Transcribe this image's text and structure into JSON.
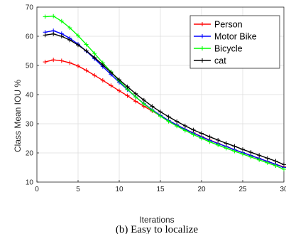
{
  "chart_data": {
    "type": "line",
    "title": "",
    "xlabel": "Iterations",
    "ylabel": "Class Mean IOU %",
    "xlim": [
      0,
      30
    ],
    "ylim": [
      10,
      70
    ],
    "xticks": [
      0,
      5,
      10,
      15,
      20,
      25,
      30
    ],
    "yticks": [
      10,
      20,
      30,
      40,
      50,
      60,
      70
    ],
    "grid": true,
    "legend_position": "top-right",
    "x": [
      1,
      2,
      3,
      4,
      5,
      6,
      7,
      8,
      9,
      10,
      11,
      12,
      13,
      14,
      15,
      16,
      17,
      18,
      19,
      20,
      21,
      22,
      23,
      24,
      25,
      26,
      27,
      28,
      29,
      30
    ],
    "series": [
      {
        "name": "Person",
        "color": "#ff0000",
        "values": [
          51.2,
          51.9,
          51.6,
          50.9,
          49.8,
          48.3,
          46.6,
          44.9,
          43.1,
          41.3,
          39.6,
          37.7,
          36.0,
          34.4,
          32.7,
          31.1,
          29.6,
          28.1,
          26.9,
          25.6,
          24.4,
          23.3,
          22.2,
          21.1,
          20.1,
          19.1,
          18.1,
          17.1,
          16.1,
          15.2
        ]
      },
      {
        "name": "Motor Bike",
        "color": "#0000ff",
        "values": [
          61.4,
          61.9,
          60.9,
          59.3,
          57.3,
          54.9,
          52.3,
          49.6,
          46.9,
          44.2,
          41.7,
          39.2,
          36.9,
          34.8,
          32.9,
          31.1,
          29.6,
          28.1,
          26.8,
          25.5,
          24.3,
          23.2,
          22.2,
          21.1,
          20.1,
          19.1,
          18.1,
          17.1,
          16.1,
          15.0
        ]
      },
      {
        "name": "Bicycle",
        "color": "#00ff00",
        "values": [
          66.7,
          66.9,
          65.2,
          62.9,
          60.2,
          57.2,
          54.1,
          50.9,
          47.8,
          44.7,
          41.9,
          39.2,
          36.8,
          34.6,
          32.6,
          30.8,
          29.2,
          27.7,
          26.3,
          25.0,
          23.8,
          22.7,
          21.6,
          20.6,
          19.6,
          18.6,
          17.6,
          16.6,
          15.6,
          14.4
        ]
      },
      {
        "name": "cat",
        "color": "#000000",
        "values": [
          60.4,
          60.8,
          60.0,
          58.7,
          57.0,
          55.0,
          52.7,
          50.2,
          47.6,
          45.1,
          42.7,
          40.3,
          38.1,
          36.0,
          34.1,
          32.4,
          30.8,
          29.3,
          27.9,
          26.7,
          25.5,
          24.4,
          23.3,
          22.3,
          21.2,
          20.2,
          19.2,
          18.2,
          17.2,
          16.0
        ]
      }
    ]
  },
  "caption": "(b) Easy to localize"
}
